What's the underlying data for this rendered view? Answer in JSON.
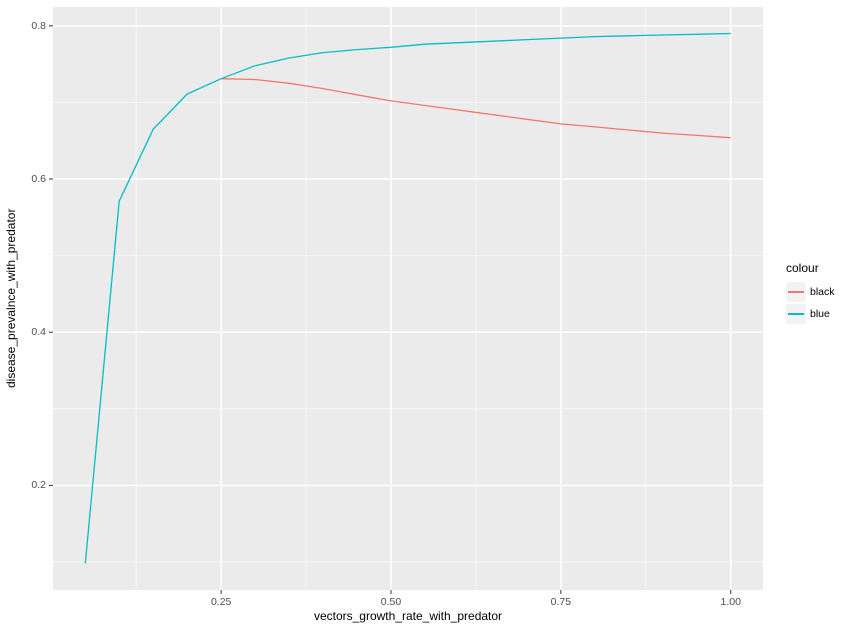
{
  "chart_data": {
    "type": "line",
    "xlabel": "vectors_growth_rate_with_predator",
    "ylabel": "disease_prevalnce_with_predator",
    "xlim": [
      0.0025,
      1.0475
    ],
    "ylim": [
      0.0634,
      0.8246
    ],
    "grid": true,
    "x_ticks": {
      "values": [
        0.25,
        0.5,
        0.75,
        1.0
      ],
      "labels": [
        "0.25",
        "0.50",
        "0.75",
        "1.00"
      ]
    },
    "y_ticks": {
      "values": [
        0.2,
        0.4,
        0.6,
        0.8
      ],
      "labels": [
        "0.2",
        "0.4",
        "0.6",
        "0.8"
      ]
    },
    "x_minor": [
      0.125,
      0.375,
      0.625,
      0.875
    ],
    "y_minor": [
      0.1,
      0.3,
      0.5,
      0.7
    ],
    "legend": {
      "title": "colour",
      "position": "right",
      "entries": [
        {
          "label": "black",
          "color": "#F8766D"
        },
        {
          "label": "blue",
          "color": "#00BFC4"
        }
      ]
    },
    "series": [
      {
        "name": "black",
        "color": "#F8766D",
        "x": [
          0.25,
          0.3,
          0.35,
          0.4,
          0.45,
          0.5,
          0.55,
          0.6,
          0.65,
          0.7,
          0.75,
          0.8,
          0.85,
          0.9,
          0.95,
          1.0
        ],
        "y": [
          0.731,
          0.73,
          0.725,
          0.718,
          0.71,
          0.702,
          0.696,
          0.69,
          0.684,
          0.678,
          0.672,
          0.668,
          0.664,
          0.66,
          0.657,
          0.654
        ]
      },
      {
        "name": "blue",
        "color": "#00BFC4",
        "x": [
          0.05,
          0.1,
          0.15,
          0.2,
          0.25,
          0.3,
          0.35,
          0.4,
          0.45,
          0.5,
          0.55,
          0.6,
          0.65,
          0.7,
          0.75,
          0.8,
          0.85,
          0.9,
          0.95,
          1.0
        ],
        "y": [
          0.098,
          0.571,
          0.665,
          0.711,
          0.731,
          0.748,
          0.758,
          0.765,
          0.769,
          0.772,
          0.776,
          0.778,
          0.78,
          0.782,
          0.784,
          0.786,
          0.787,
          0.788,
          0.789,
          0.79
        ]
      }
    ]
  },
  "style": {
    "figure_bg": "#FFFFFF",
    "panel_bg": "#EBEBEB",
    "grid_major": "#FFFFFF",
    "grid_minor": "#FFFFFF",
    "tick_color": "#333333",
    "tick_label_color": "#4D4D4D",
    "title_color": "#000000",
    "legend_key_bg": "#F2F2F2"
  }
}
